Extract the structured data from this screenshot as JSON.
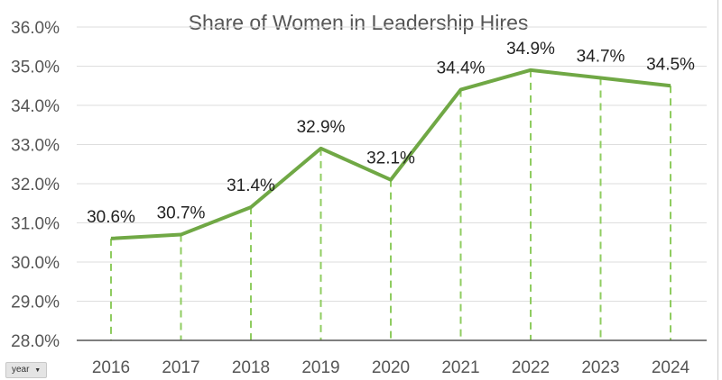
{
  "chart_data": {
    "type": "line",
    "title": "Share of Women in Leadership Hires",
    "categories": [
      "2016",
      "2017",
      "2018",
      "2019",
      "2020",
      "2021",
      "2022",
      "2023",
      "2024"
    ],
    "series": [
      {
        "name": "Share of Women in Leadership Hires",
        "values": [
          30.6,
          30.7,
          31.4,
          32.9,
          32.1,
          34.4,
          34.9,
          34.7,
          34.5
        ]
      }
    ],
    "data_labels": [
      "30.6%",
      "30.7%",
      "31.4%",
      "32.9%",
      "32.1%",
      "34.4%",
      "34.9%",
      "34.7%",
      "34.5%"
    ],
    "yticks": [
      "28.0%",
      "29.0%",
      "30.0%",
      "31.0%",
      "32.0%",
      "33.0%",
      "34.0%",
      "35.0%",
      "36.0%"
    ],
    "ylim": [
      28,
      36
    ],
    "xlabel": "",
    "ylabel": "",
    "grid": true,
    "colors": {
      "line": "#70a845",
      "drop": "#8fcc60",
      "grid": "#dedede"
    }
  },
  "field_button": {
    "label": "year",
    "icon": "dropdown-arrow-icon"
  }
}
